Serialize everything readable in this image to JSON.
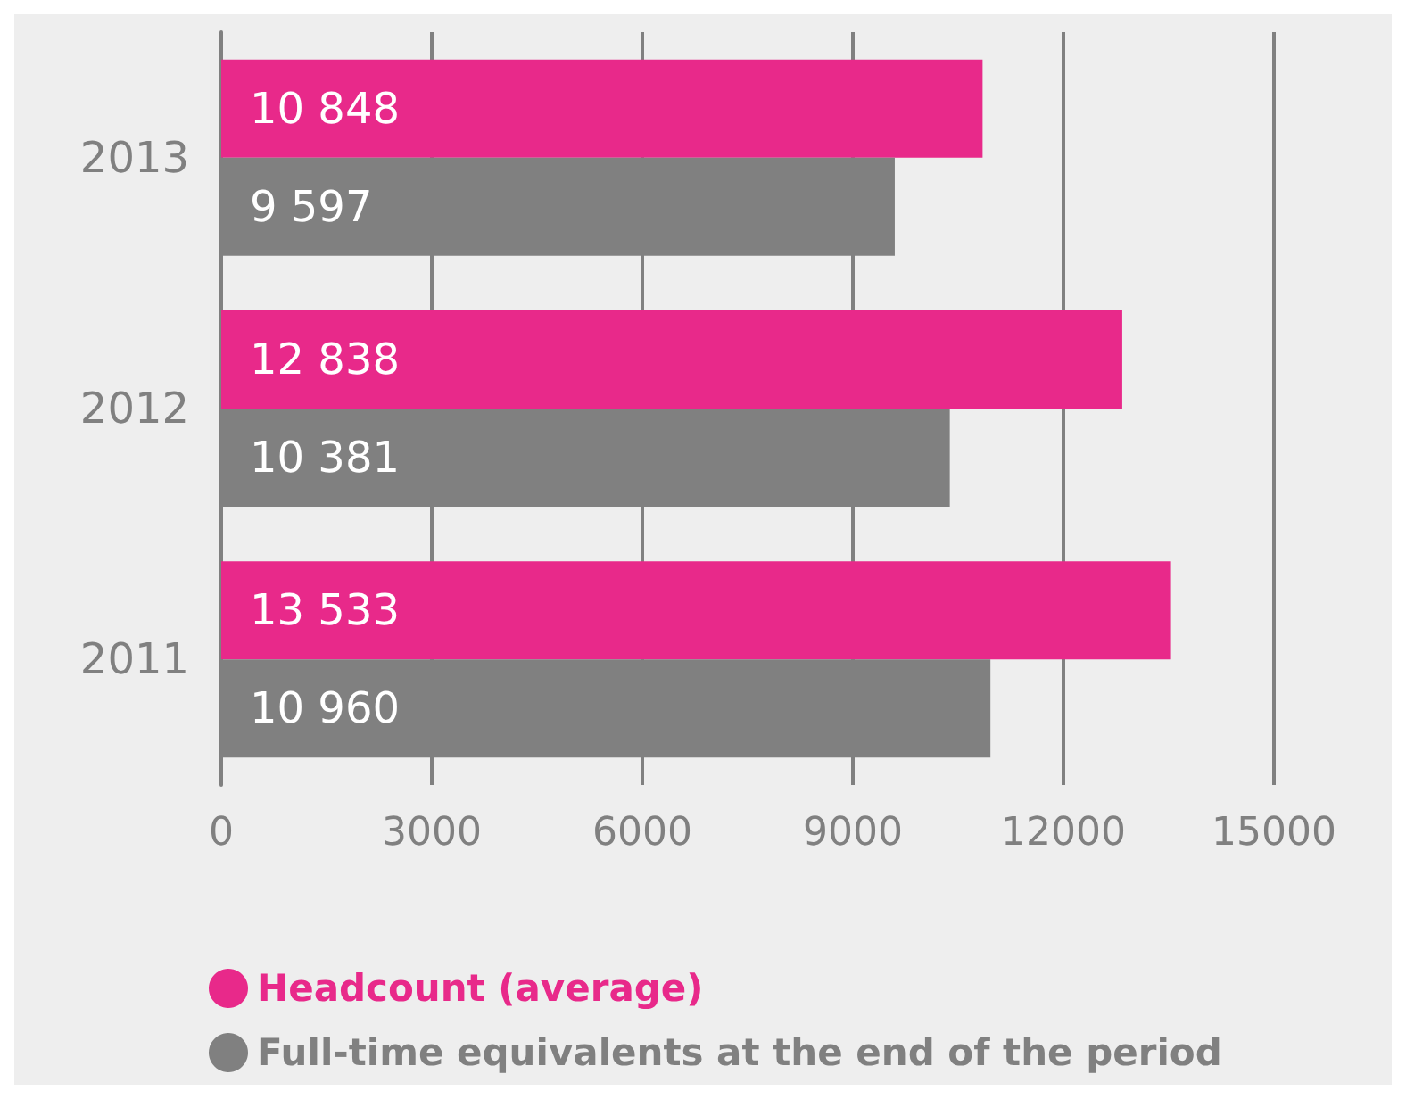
{
  "chart_data": {
    "type": "bar",
    "orientation": "horizontal",
    "categories": [
      "2013",
      "2012",
      "2011"
    ],
    "series": [
      {
        "name": "Headcount (average)",
        "color": "#e8298a",
        "values": [
          10848,
          12838,
          13533
        ],
        "value_labels": [
          "10 848",
          "12 838",
          "13 533"
        ]
      },
      {
        "name": "Full-time equivalents at the end of the period",
        "color": "#808080",
        "values": [
          9597,
          10381,
          10960
        ],
        "value_labels": [
          "9 597",
          "10 381",
          "10 960"
        ]
      }
    ],
    "xlim": [
      0,
      15000
    ],
    "xticks": [
      0,
      3000,
      6000,
      9000,
      12000,
      15000
    ],
    "grid": "x",
    "legend": "bottom left"
  }
}
